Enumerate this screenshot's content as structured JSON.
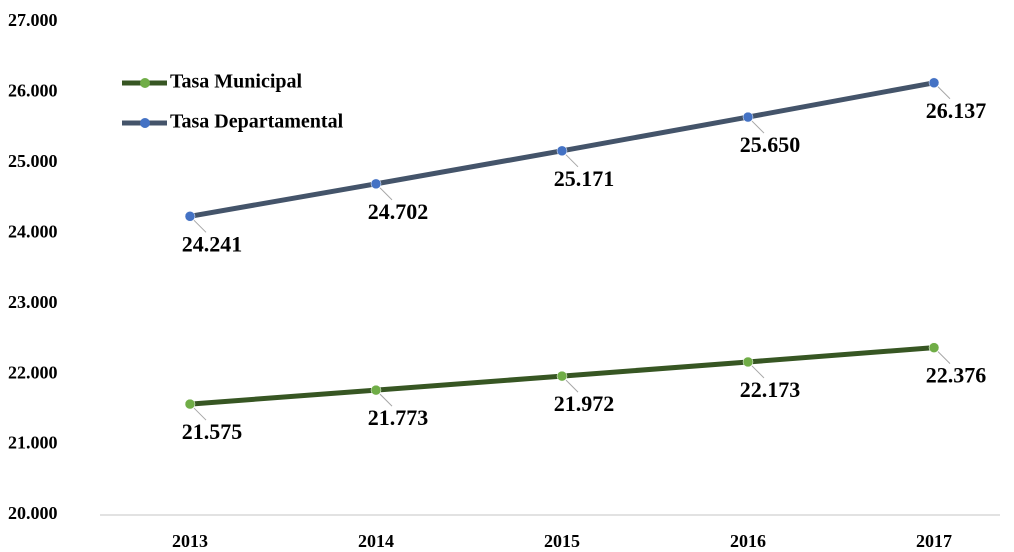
{
  "chart_data": {
    "type": "line",
    "categories": [
      "2013",
      "2014",
      "2015",
      "2016",
      "2017"
    ],
    "series": [
      {
        "name": "Tasa Municipal",
        "color": "#375623",
        "marker_color": "#70ad47",
        "values": [
          21.575,
          21.773,
          21.972,
          22.173,
          22.376
        ]
      },
      {
        "name": "Tasa Departamental",
        "color": "#44546a",
        "marker_color": "#4472c4",
        "values": [
          24.241,
          24.702,
          25.171,
          25.65,
          26.137
        ],
        "value_labels": [
          "24.241",
          "24.702",
          "25.171",
          "25.650",
          "26.137"
        ]
      }
    ],
    "ylim": [
      20,
      27
    ],
    "yticks": [
      {
        "value": 20,
        "label": "20.000"
      },
      {
        "value": 21,
        "label": "21.000"
      },
      {
        "value": 22,
        "label": "22.000"
      },
      {
        "value": 23,
        "label": "23.000"
      },
      {
        "value": 24,
        "label": "24.000"
      },
      {
        "value": 25,
        "label": "25.000"
      },
      {
        "value": 26,
        "label": "26.000"
      },
      {
        "value": 27,
        "label": "27.000"
      }
    ],
    "grid": false,
    "legend": "upper left"
  }
}
